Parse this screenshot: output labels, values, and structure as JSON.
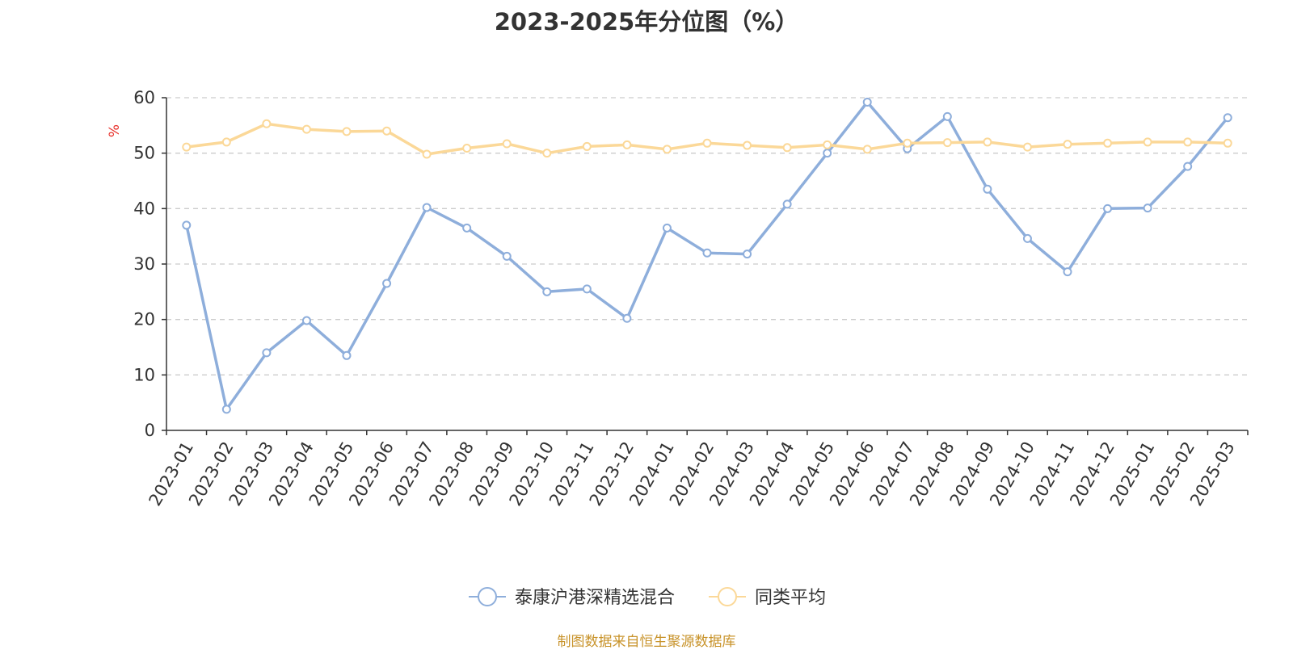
{
  "chart_data": {
    "type": "line",
    "title": "2023-2025年分位图（%）",
    "ylabel": "%",
    "ylim": [
      0,
      60
    ],
    "yticks": [
      0,
      10,
      20,
      30,
      40,
      50,
      60
    ],
    "grid": "horizontal dashed",
    "legend_position": "bottom-center",
    "categories": [
      "2023-01",
      "2023-02",
      "2023-03",
      "2023-04",
      "2023-05",
      "2023-06",
      "2023-07",
      "2023-08",
      "2023-09",
      "2023-10",
      "2023-11",
      "2023-12",
      "2024-01",
      "2024-02",
      "2024-03",
      "2024-04",
      "2024-05",
      "2024-06",
      "2024-07",
      "2024-08",
      "2024-09",
      "2024-10",
      "2024-11",
      "2024-12",
      "2025-01",
      "2025-02",
      "2025-03"
    ],
    "series": [
      {
        "name": "泰康沪港深精选混合",
        "color": "#8eaedb",
        "values": [
          37.0,
          3.8,
          14.0,
          19.8,
          13.5,
          26.5,
          40.2,
          36.5,
          31.4,
          25.0,
          25.5,
          20.2,
          36.5,
          32.0,
          31.8,
          40.8,
          50.0,
          59.2,
          50.8,
          56.6,
          43.5,
          34.6,
          28.6,
          40.0,
          40.1,
          47.6,
          56.4
        ]
      },
      {
        "name": "同类平均",
        "color": "#fbd898",
        "values": [
          51.1,
          52.0,
          55.3,
          54.3,
          53.9,
          54.0,
          49.8,
          50.9,
          51.7,
          50.0,
          51.2,
          51.5,
          50.7,
          51.8,
          51.4,
          51.0,
          51.5,
          50.7,
          51.8,
          51.9,
          52.0,
          51.1,
          51.6,
          51.8,
          52.0,
          52.0,
          51.8
        ]
      }
    ]
  },
  "footer": {
    "source": "制图数据来自恒生聚源数据库"
  },
  "colors": {
    "title": "#333333",
    "ylabel": "#e8302a",
    "source": "#c8932a",
    "grid": "#cccccc"
  }
}
